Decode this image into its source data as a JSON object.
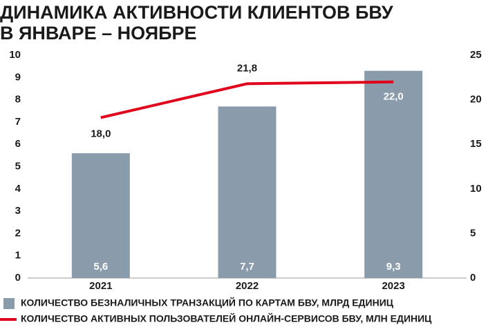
{
  "chart_data": {
    "type": "bar-line",
    "title": [
      "ДИНАМИКА АКТИВНОСТИ КЛИЕНТОВ БВУ",
      "В ЯНВАРЕ – НОЯБРЕ"
    ],
    "categories": [
      "2021",
      "2022",
      "2023"
    ],
    "series": [
      {
        "name": "КОЛИЧЕСТВО БЕЗНАЛИЧНЫХ ТРАНЗАКЦИЙ ПО КАРТАМ БВУ, МЛРД ЕДИНИЦ",
        "type": "bar",
        "color": "#8a9bab",
        "values": [
          5.6,
          7.7,
          9.3
        ],
        "value_labels": [
          "5,6",
          "7,7",
          "9,3"
        ]
      },
      {
        "name": "КОЛИЧЕСТВО АКТИВНЫХ ПОЛЬЗОВАТЕЛЕЙ ОНЛАЙН-СЕРВИСОВ БВУ, МЛН ЕДИНИЦ",
        "type": "line",
        "axis": "y2",
        "color": "#e0001b",
        "values": [
          18.0,
          21.8,
          22.0
        ],
        "value_labels": [
          "18,0",
          "21,8",
          "22,0"
        ]
      }
    ],
    "ylim": [
      0,
      10
    ],
    "yticks": [
      0,
      1,
      2,
      3,
      4,
      5,
      6,
      7,
      8,
      9,
      10
    ],
    "y2lim": [
      0,
      25
    ],
    "y2ticks": [
      0,
      5,
      10,
      15,
      20,
      25
    ]
  }
}
